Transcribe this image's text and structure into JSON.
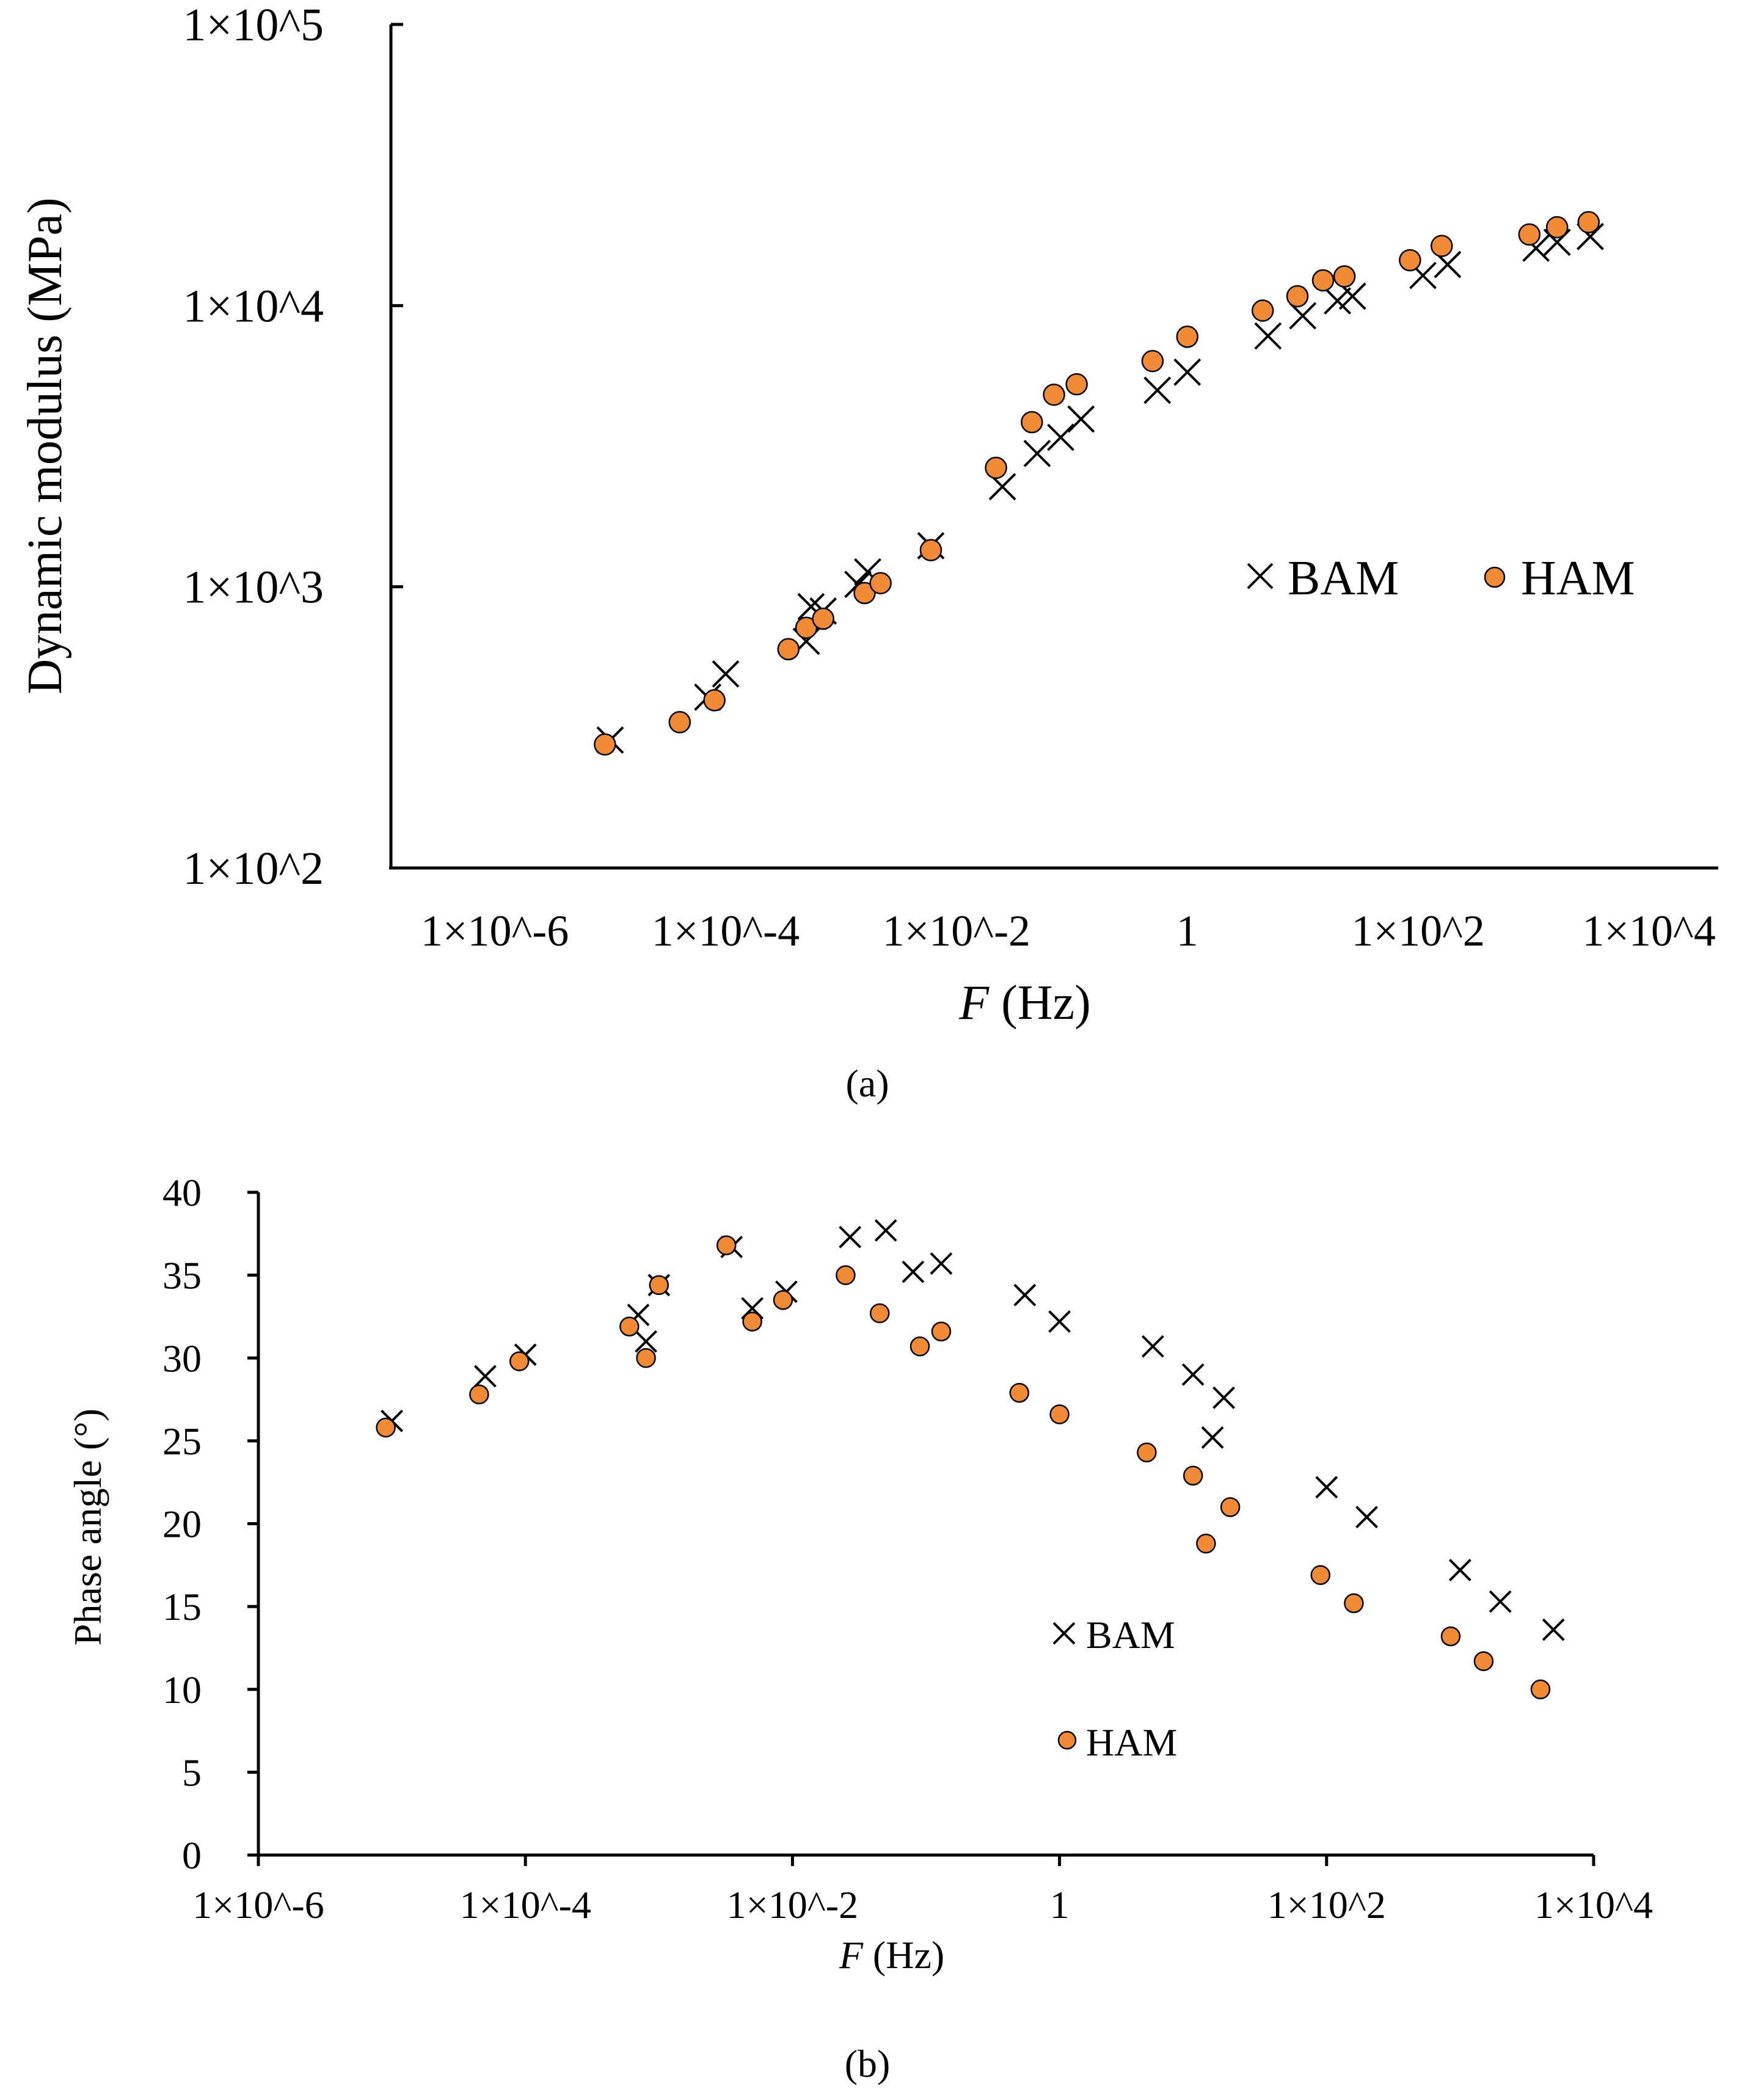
{
  "chart_data": [
    {
      "id": "a",
      "type": "scatter",
      "caption": "(a)",
      "xscale": "log",
      "yscale": "log",
      "xlim_exp": [
        -6.9,
        4.6
      ],
      "ylim_exp": [
        2,
        5
      ],
      "xlabel_italic": "F",
      "xlabel_rest": " (Hz)",
      "ylabel": "Dynamic modulus (MPa)",
      "xticks": [
        {
          "label": "1×10^-6",
          "exp": -6
        },
        {
          "label": "1×10^-4",
          "exp": -4
        },
        {
          "label": "1×10^-2",
          "exp": -2
        },
        {
          "label": "1",
          "exp": 0
        },
        {
          "label": "1×10^2",
          "exp": 2
        },
        {
          "label": "1×10^4",
          "exp": 4
        }
      ],
      "yticks": [
        {
          "label": "1×10^2",
          "exp": 2
        },
        {
          "label": "1×10^3",
          "exp": 3
        },
        {
          "label": "1×10^4",
          "exp": 4
        },
        {
          "label": "1×10^5",
          "exp": 5
        }
      ],
      "legend": {
        "position": "center-right",
        "layout": "horizontal"
      },
      "series": [
        {
          "name": "BAM",
          "marker": "cross",
          "points": [
            [
              1e-05,
              285
            ],
            [
              7e-05,
              405
            ],
            [
              0.0001,
              490
            ],
            [
              0.0005,
              640
            ],
            [
              0.00055,
              850
            ],
            [
              0.0007,
              820
            ],
            [
              0.0014,
              1020
            ],
            [
              0.0017,
              1130
            ],
            [
              0.006,
              1400
            ],
            [
              0.025,
              2270
            ],
            [
              0.05,
              2980
            ],
            [
              0.08,
              3400
            ],
            [
              0.12,
              3950
            ],
            [
              0.55,
              5000
            ],
            [
              1.0,
              5800
            ],
            [
              5.0,
              7800
            ],
            [
              10.0,
              9200
            ],
            [
              20.0,
              10400
            ],
            [
              27.0,
              10800
            ],
            [
              110.0,
              12800
            ],
            [
              180.0,
              14000
            ],
            [
              1050.0,
              16000
            ],
            [
              1600.0,
              16800
            ],
            [
              3100.0,
              17600
            ]
          ]
        },
        {
          "name": "HAM",
          "marker": "circle",
          "points": [
            [
              9e-06,
              275
            ],
            [
              4e-05,
              330
            ],
            [
              8e-05,
              395
            ],
            [
              0.00035,
              600
            ],
            [
              0.0005,
              715
            ],
            [
              0.0007,
              770
            ],
            [
              0.0016,
              950
            ],
            [
              0.0022,
              1030
            ],
            [
              0.006,
              1350
            ],
            [
              0.022,
              2650
            ],
            [
              0.045,
              3850
            ],
            [
              0.07,
              4820
            ],
            [
              0.11,
              5250
            ],
            [
              0.5,
              6350
            ],
            [
              1.0,
              7750
            ],
            [
              4.5,
              9600
            ],
            [
              9.0,
              10800
            ],
            [
              15.0,
              12300
            ],
            [
              23.0,
              12700
            ],
            [
              85.0,
              14500
            ],
            [
              160.0,
              16300
            ],
            [
              920.0,
              17900
            ],
            [
              1600.0,
              19000
            ],
            [
              3000.0,
              19800
            ]
          ]
        }
      ]
    },
    {
      "id": "b",
      "type": "scatter",
      "caption": "(b)",
      "xscale": "log",
      "yscale": "linear",
      "xlim_exp": [
        -6,
        4
      ],
      "ylim": [
        0,
        40
      ],
      "xlabel_italic": "F",
      "xlabel_rest": " (Hz)",
      "ylabel": "Phase angle (°)",
      "xticks": [
        {
          "label": "1×10^-6",
          "exp": -6
        },
        {
          "label": "1×10^-4",
          "exp": -4
        },
        {
          "label": "1×10^-2",
          "exp": -2
        },
        {
          "label": "1",
          "exp": 0
        },
        {
          "label": "1×10^2",
          "exp": 2
        },
        {
          "label": "1×10^4",
          "exp": 4
        }
      ],
      "yticks": [
        0,
        5,
        10,
        15,
        20,
        25,
        30,
        35,
        40
      ],
      "legend": {
        "position": "lower-center-right",
        "layout": "vertical"
      },
      "series": [
        {
          "name": "BAM",
          "marker": "cross",
          "points": [
            [
              1e-05,
              26.2
            ],
            [
              5e-05,
              28.9
            ],
            [
              0.0001,
              30.2
            ],
            [
              0.0007,
              32.6
            ],
            [
              0.0008,
              31.0
            ],
            [
              0.001,
              34.4
            ],
            [
              0.0035,
              36.7
            ],
            [
              0.005,
              33.0
            ],
            [
              0.009,
              34.0
            ],
            [
              0.027,
              37.3
            ],
            [
              0.05,
              37.7
            ],
            [
              0.08,
              35.2
            ],
            [
              0.13,
              35.7
            ],
            [
              0.55,
              33.8
            ],
            [
              1.0,
              32.2
            ],
            [
              5.0,
              30.7
            ],
            [
              10.0,
              29.0
            ],
            [
              14.0,
              25.2
            ],
            [
              17.0,
              27.6
            ],
            [
              100.0,
              22.2
            ],
            [
              200.0,
              20.4
            ],
            [
              1000.0,
              17.2
            ],
            [
              2000.0,
              15.3
            ],
            [
              5000.0,
              13.6
            ]
          ]
        },
        {
          "name": "HAM",
          "marker": "circle",
          "points": [
            [
              9e-06,
              25.8
            ],
            [
              4.5e-05,
              27.8
            ],
            [
              9e-05,
              29.8
            ],
            [
              0.0006,
              31.9
            ],
            [
              0.0008,
              30.0
            ],
            [
              0.001,
              34.4
            ],
            [
              0.0032,
              36.8
            ],
            [
              0.005,
              32.2
            ],
            [
              0.0085,
              33.5
            ],
            [
              0.025,
              35.0
            ],
            [
              0.045,
              32.7
            ],
            [
              0.09,
              30.7
            ],
            [
              0.13,
              31.6
            ],
            [
              0.5,
              27.9
            ],
            [
              1.0,
              26.6
            ],
            [
              4.5,
              24.3
            ],
            [
              10.0,
              22.9
            ],
            [
              12.5,
              18.8
            ],
            [
              19.0,
              21.0
            ],
            [
              90.0,
              16.9
            ],
            [
              160.0,
              15.2
            ],
            [
              850.0,
              13.2
            ],
            [
              1500.0,
              11.7
            ],
            [
              4000.0,
              10.0
            ]
          ]
        }
      ]
    }
  ]
}
